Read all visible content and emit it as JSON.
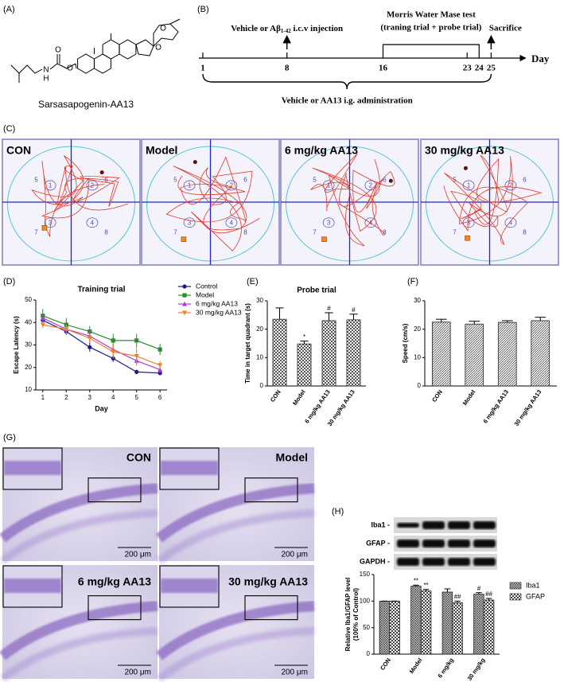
{
  "panel_labels": [
    "(A)",
    "(B)",
    "(C)",
    "(D)",
    "(E)",
    "(F)",
    "(G)",
    "(H)"
  ],
  "structure": {
    "name": "Sarsasapogenin-AA13",
    "atoms": [
      "N",
      "H",
      "O",
      "O",
      "O",
      "O"
    ]
  },
  "timeline": {
    "days": [
      1,
      8,
      16,
      23,
      24,
      25
    ],
    "axis_label": "Day",
    "injection": [
      "Vehicle or Aβ",
      "1-42",
      " i.c.v injection"
    ],
    "test": [
      "Morris Water Mase test",
      "(traning trial + probe trial)"
    ],
    "end": "Sacrifice",
    "treatment": "Vehicle or AA13 i.g. administration"
  },
  "maze": {
    "groups": [
      "CON",
      "Model",
      "6 mg/kg AA13",
      "30 mg/kg AA13"
    ],
    "zones": [
      "1",
      "2",
      "3",
      "4",
      "5",
      "6",
      "7",
      "8"
    ]
  },
  "histology": {
    "groups": [
      "CON",
      "Model",
      "6 mg/kg AA13",
      "30 mg/kg AA13"
    ],
    "scale": "200 μm"
  },
  "blot": {
    "bands": [
      "Iba1 -",
      "GFAP -",
      "GAPDH -"
    ]
  },
  "chart_data": [
    {
      "type": "line",
      "title": "Training trial",
      "xlabel": "Day",
      "ylabel": "Escape Latency (s)",
      "x": [
        1,
        2,
        3,
        4,
        5,
        6
      ],
      "xlim": [
        0.7,
        6.3
      ],
      "xticks": [
        1,
        2,
        3,
        4,
        5,
        6
      ],
      "ylim": [
        10,
        50
      ],
      "yticks": [
        10,
        20,
        30,
        40,
        50
      ],
      "series": [
        {
          "name": "Control",
          "color": "#1c1c86",
          "marker": "circle",
          "values": [
            41,
            36,
            29,
            24,
            18,
            17.5
          ],
          "errors": [
            2,
            1.5,
            2,
            1.5,
            1,
            1
          ]
        },
        {
          "name": "Model",
          "color": "#2e8b2e",
          "marker": "square",
          "values": [
            43,
            39,
            36,
            32,
            32,
            28
          ],
          "errors": [
            3,
            3,
            2.5,
            3,
            3,
            2.5
          ]
        },
        {
          "name": "6 mg/kg AA13",
          "color": "#b03cd0",
          "marker": "triangle",
          "values": [
            42,
            37,
            34,
            28,
            23,
            19
          ],
          "errors": [
            2,
            2,
            3,
            2,
            2,
            1.5
          ]
        },
        {
          "name": "30 mg/kg AA13",
          "color": "#f08030",
          "marker": "triangle-down",
          "values": [
            39,
            37,
            33,
            27,
            25,
            21
          ],
          "errors": [
            1.5,
            2,
            2,
            3,
            4,
            2
          ]
        }
      ]
    },
    {
      "type": "bar",
      "title": "Probe trial",
      "ylabel": "Time in target quadrant (s)",
      "categories": [
        "CON",
        "Model",
        "6 mg/kg AA13",
        "30 mg/kg AA13"
      ],
      "values": [
        23.5,
        14.8,
        23,
        23.3
      ],
      "errors": [
        4,
        1,
        2.8,
        2
      ],
      "significance": [
        null,
        "*",
        "#",
        "#"
      ],
      "color": "#555555",
      "pattern": "checker",
      "ylim": [
        0,
        30
      ],
      "yticks": [
        0,
        10,
        20,
        30
      ]
    },
    {
      "type": "bar",
      "ylabel": "Speed (cm/s)",
      "categories": [
        "CON",
        "Model",
        "6 mg/kg AA13",
        "30 mg/kg AA13"
      ],
      "values": [
        22.5,
        21.8,
        22.4,
        23
      ],
      "errors": [
        1,
        1,
        0.6,
        1.2
      ],
      "color": "#555555",
      "pattern": "hatch",
      "ylim": [
        0,
        30
      ],
      "yticks": [
        0,
        10,
        20,
        30
      ]
    },
    {
      "type": "bar",
      "ylabel": [
        "Relative Iba1/GFAP  level",
        "(100% of Control)"
      ],
      "categories": [
        "CON",
        "Model",
        "6 mg/kg",
        "30 mg/kg"
      ],
      "series": [
        {
          "name": "Iba1",
          "color": "#444444",
          "pattern": "grid",
          "values": [
            100,
            128,
            117,
            113
          ],
          "errors": [
            0,
            2,
            6,
            3
          ],
          "significance": [
            null,
            "**",
            null,
            "#"
          ]
        },
        {
          "name": "GFAP",
          "color": "#444444",
          "pattern": "checker",
          "values": [
            100,
            119,
            97,
            102
          ],
          "errors": [
            0,
            3,
            3,
            3
          ],
          "significance": [
            null,
            "**",
            "##",
            "##"
          ]
        }
      ],
      "ylim": [
        0,
        150
      ],
      "yticks": [
        0,
        50,
        100,
        150
      ],
      "legend": "right"
    }
  ]
}
